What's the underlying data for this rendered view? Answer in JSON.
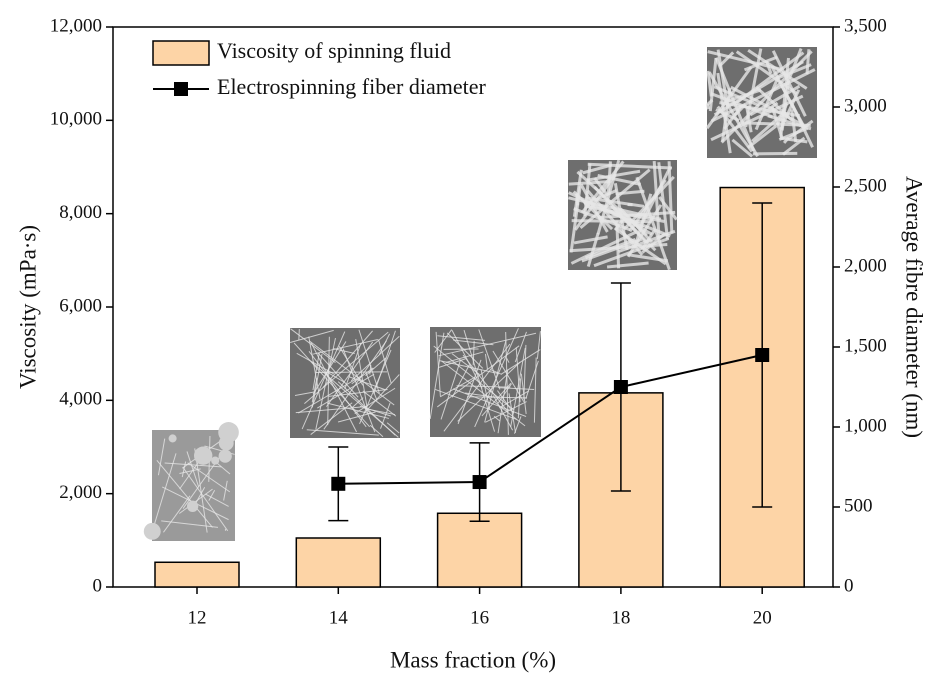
{
  "chart_data": {
    "type": "bar_line",
    "x_label": "Mass fraction (%)",
    "y_label": "Viscosity (mPa·s)",
    "y2_label": "Average fibre diameter (nm)",
    "categories": [
      "12",
      "14",
      "16",
      "18",
      "20"
    ],
    "ylim": [
      0,
      12000
    ],
    "yticks": [
      0,
      {
        "value": 2000,
        "label": "2,000"
      },
      {
        "value": 4000,
        "label": "4,000"
      },
      {
        "value": 6000,
        "label": "6,000"
      },
      {
        "value": 8000,
        "label": "8,000"
      },
      {
        "value": 10000,
        "label": "10,000"
      },
      {
        "value": 12000,
        "label": "12,000"
      }
    ],
    "y2lim": [
      0,
      3500
    ],
    "y2ticks": [
      0,
      500,
      {
        "value": 1000,
        "label": "1,000"
      },
      {
        "value": 1500,
        "label": "1,500"
      },
      {
        "value": 2000,
        "label": "2,000"
      },
      {
        "value": 2500,
        "label": "2,500"
      },
      {
        "value": 3000,
        "label": "3,000"
      },
      {
        "value": 3500,
        "label": "3,500"
      }
    ],
    "series": [
      {
        "name": "Viscosity of spinning fluid",
        "type": "bar",
        "axis": "y",
        "color": "#fdd4a6",
        "values": [
          530,
          1050,
          1580,
          4160,
          8560
        ]
      },
      {
        "name": "Electrospinning fiber diameter",
        "type": "line",
        "axis": "y2",
        "color": "#000000",
        "values": [
          null,
          645,
          656,
          1250,
          1450
        ],
        "errors": [
          null,
          230,
          245,
          650,
          950
        ]
      }
    ],
    "legend": "upper-left"
  }
}
